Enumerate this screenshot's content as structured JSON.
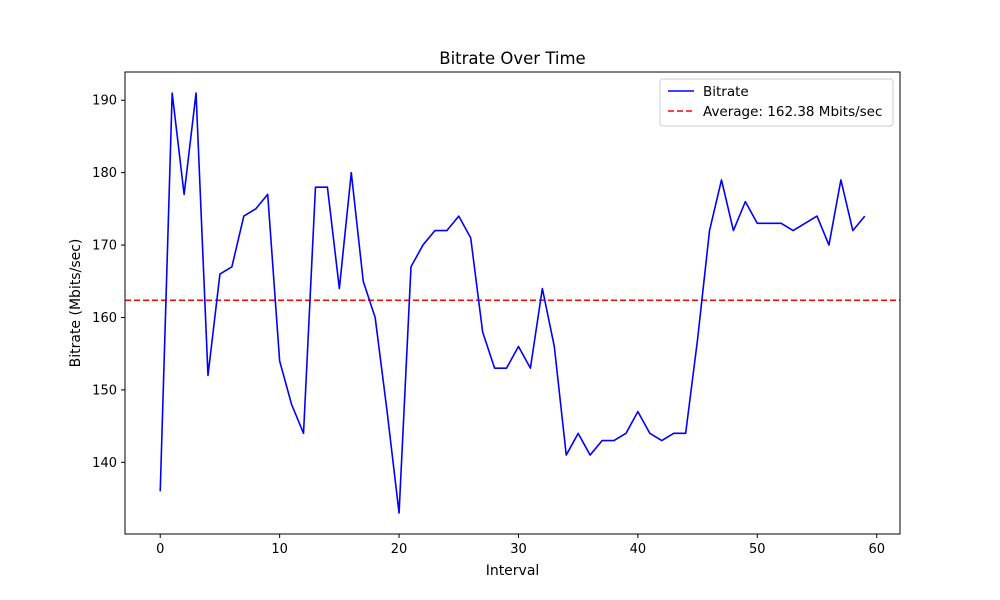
{
  "chart_data": {
    "type": "line",
    "title": "Bitrate Over Time",
    "xlabel": "Interval",
    "ylabel": "Bitrate (Mbits/sec)",
    "xlim": [
      -2.95,
      61.95
    ],
    "ylim": [
      130.1,
      193.9
    ],
    "xticks": [
      0,
      10,
      20,
      30,
      40,
      50,
      60
    ],
    "yticks": [
      140,
      150,
      160,
      170,
      180,
      190
    ],
    "grid": false,
    "legend_position": "top-right",
    "x": [
      0,
      1,
      2,
      3,
      4,
      5,
      6,
      7,
      8,
      9,
      10,
      11,
      12,
      13,
      14,
      15,
      16,
      17,
      18,
      19,
      20,
      21,
      22,
      23,
      24,
      25,
      26,
      27,
      28,
      29,
      30,
      31,
      32,
      33,
      34,
      35,
      36,
      37,
      38,
      39,
      40,
      41,
      42,
      43,
      44,
      45,
      46,
      47,
      48,
      49,
      50,
      51,
      52,
      53,
      54,
      55,
      56,
      57,
      58,
      59
    ],
    "series": [
      {
        "name": "Bitrate",
        "color": "#0000ff",
        "style": "solid",
        "values": [
          136,
          191,
          177,
          191,
          152,
          166,
          167,
          174,
          175,
          177,
          154,
          148,
          144,
          178,
          178,
          164,
          180,
          165,
          160,
          147,
          133,
          167,
          170,
          172,
          172,
          174,
          171,
          158,
          153,
          153,
          156,
          153,
          164,
          156,
          141,
          144,
          141,
          143,
          143,
          144,
          147,
          144,
          143,
          144,
          144,
          157,
          172,
          179,
          172,
          176,
          173,
          173,
          173,
          172,
          173,
          174,
          170,
          179,
          172,
          174
        ]
      }
    ],
    "reference_lines": [
      {
        "name": "Average: 162.38 Mbits/sec",
        "value": 162.38,
        "color": "#ff0000",
        "style": "dashed"
      }
    ]
  }
}
